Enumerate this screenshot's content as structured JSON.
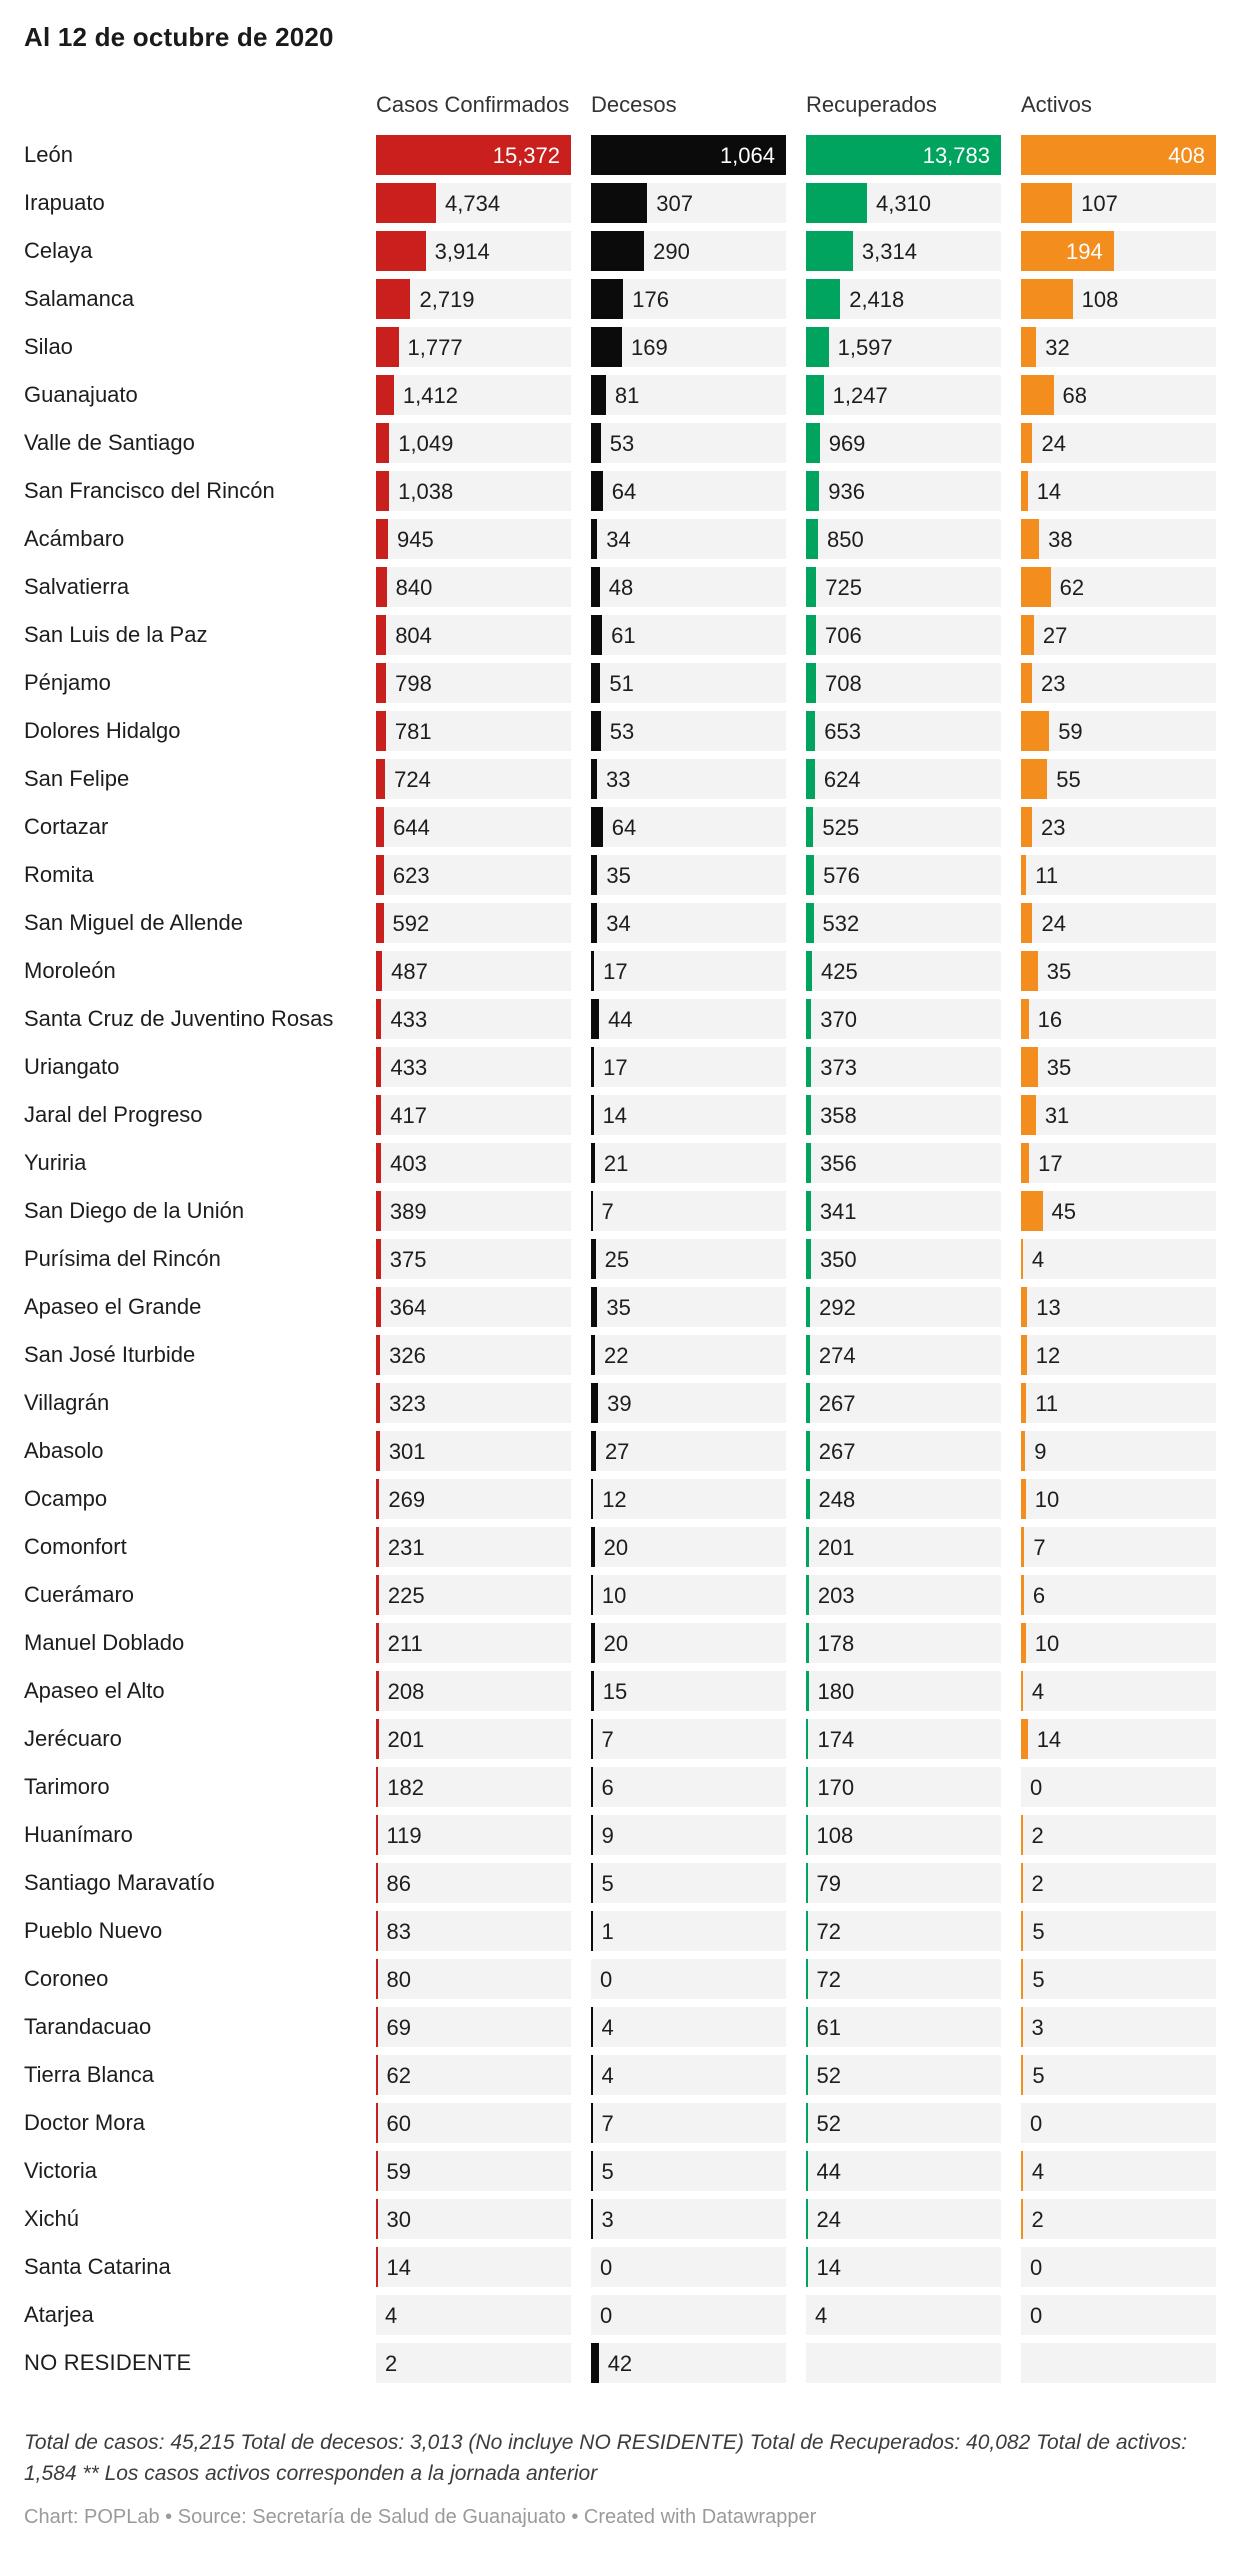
{
  "title": "Al 12 de octubre de 2020",
  "colors": {
    "casos": "#c9201e",
    "decesos": "#0b0b0b",
    "recuperados": "#00a45e",
    "activos": "#f28d1e",
    "track": "#f3f3f3"
  },
  "chart_data": {
    "type": "bar",
    "title": "Al 12 de octubre de 2020",
    "layout": "bar table: one row per municipality, four bar columns each scaled to its own column maximum, light gray background tracks, value labels inside bar (white) when it fits, otherwise outside (dark)",
    "categories": [
      "León",
      "Irapuato",
      "Celaya",
      "Salamanca",
      "Silao",
      "Guanajuato",
      "Valle de Santiago",
      "San Francisco del Rincón",
      "Acámbaro",
      "Salvatierra",
      "San Luis de la Paz",
      "Pénjamo",
      "Dolores Hidalgo",
      "San Felipe",
      "Cortazar",
      "Romita",
      "San Miguel de Allende",
      "Moroleón",
      "Santa Cruz de Juventino Rosas",
      "Uriangato",
      "Jaral del Progreso",
      "Yuriria",
      "San Diego de la Unión",
      "Purísima del Rincón",
      "Apaseo el Grande",
      "San José Iturbide",
      "Villagrán",
      "Abasolo",
      "Ocampo",
      "Comonfort",
      "Cuerámaro",
      "Manuel Doblado",
      "Apaseo el Alto",
      "Jerécuaro",
      "Tarimoro",
      "Huanímaro",
      "Santiago Maravatío",
      "Pueblo Nuevo",
      "Coroneo",
      "Tarandacuao",
      "Tierra Blanca",
      "Doctor Mora",
      "Victoria",
      "Xichú",
      "Santa Catarina",
      "Atarjea",
      "NO RESIDENTE"
    ],
    "series": [
      {
        "name": "Casos Confirmados",
        "color": "#c9201e",
        "axis_max": 15372,
        "values": [
          15372,
          4734,
          3914,
          2719,
          1777,
          1412,
          1049,
          1038,
          945,
          840,
          804,
          798,
          781,
          724,
          644,
          623,
          592,
          487,
          433,
          433,
          417,
          403,
          389,
          375,
          364,
          326,
          323,
          301,
          269,
          231,
          225,
          211,
          208,
          201,
          182,
          119,
          86,
          83,
          80,
          69,
          62,
          60,
          59,
          30,
          14,
          4,
          2
        ]
      },
      {
        "name": "Decesos",
        "color": "#0b0b0b",
        "axis_max": 1064,
        "values": [
          1064,
          307,
          290,
          176,
          169,
          81,
          53,
          64,
          34,
          48,
          61,
          51,
          53,
          33,
          64,
          35,
          34,
          17,
          44,
          17,
          14,
          21,
          7,
          25,
          35,
          22,
          39,
          27,
          12,
          20,
          10,
          20,
          15,
          7,
          6,
          9,
          5,
          1,
          0,
          4,
          4,
          7,
          5,
          3,
          0,
          0,
          42
        ]
      },
      {
        "name": "Recuperados",
        "color": "#00a45e",
        "axis_max": 13783,
        "values": [
          13783,
          4310,
          3314,
          2418,
          1597,
          1247,
          969,
          936,
          850,
          725,
          706,
          708,
          653,
          624,
          525,
          576,
          532,
          425,
          370,
          373,
          358,
          356,
          341,
          350,
          292,
          274,
          267,
          267,
          248,
          201,
          203,
          178,
          180,
          174,
          170,
          108,
          79,
          72,
          72,
          61,
          52,
          52,
          44,
          24,
          14,
          4,
          null
        ]
      },
      {
        "name": "Activos",
        "color": "#f28d1e",
        "axis_max": 408,
        "values": [
          408,
          107,
          194,
          108,
          32,
          68,
          24,
          14,
          38,
          62,
          27,
          23,
          59,
          55,
          23,
          11,
          24,
          35,
          16,
          35,
          31,
          17,
          45,
          4,
          13,
          12,
          11,
          9,
          10,
          7,
          6,
          10,
          4,
          14,
          0,
          2,
          2,
          5,
          5,
          3,
          5,
          0,
          4,
          2,
          0,
          0,
          null
        ]
      }
    ],
    "legend_position": "column headers",
    "grid": false
  },
  "footer": {
    "note": "Total de casos: 45,215 Total de decesos: 3,013 (No incluye NO RESIDENTE) Total de Recuperados: 40,082 Total de activos: 1,584 ** Los casos activos corresponden a la jornada anterior",
    "credit": "Chart: POPLab • Source: Secretaría de Salud de Guanajuato • Created with Datawrapper"
  }
}
